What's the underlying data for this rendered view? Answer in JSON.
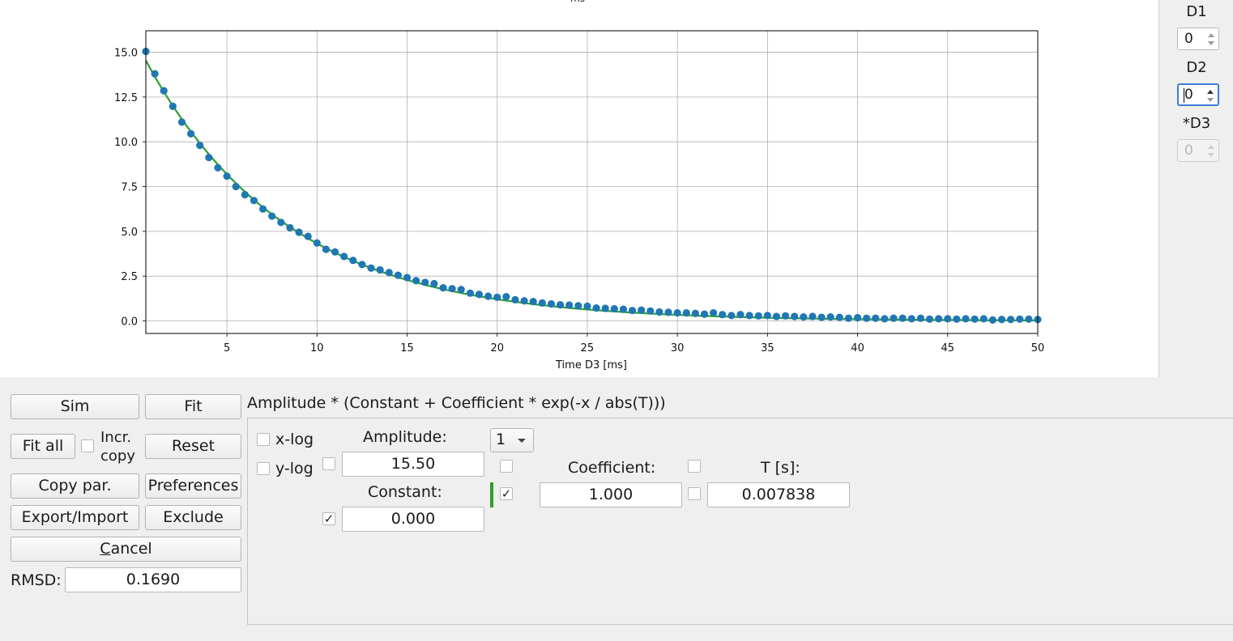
{
  "plot": {
    "title_fragment": "ms",
    "xlabel": "Time D3 [ms]"
  },
  "chart_data": {
    "type": "scatter",
    "title": "",
    "xlabel": "Time D3 [ms]",
    "ylabel": "",
    "xlim": [
      0.5,
      50
    ],
    "ylim": [
      -0.7,
      16.2
    ],
    "x_ticks": [
      5,
      10,
      15,
      20,
      25,
      30,
      35,
      40,
      45,
      50
    ],
    "y_ticks": [
      0.0,
      2.5,
      5.0,
      7.5,
      10.0,
      12.5,
      15.0
    ],
    "y_tick_labels": [
      "0.0",
      "2.5",
      "5.0",
      "7.5",
      "10.0",
      "12.5",
      "15.0"
    ],
    "grid": true,
    "series": [
      {
        "kind": "scatter",
        "color": "#1f77b4",
        "x": [
          0.5,
          1.0,
          1.5,
          2.0,
          2.5,
          3.0,
          3.5,
          4.0,
          4.5,
          5.0,
          5.5,
          6.0,
          6.5,
          7.0,
          7.5,
          8.0,
          8.5,
          9.0,
          9.5,
          10.0,
          10.5,
          11.0,
          11.5,
          12.0,
          12.5,
          13.0,
          13.5,
          14.0,
          14.5,
          15.0,
          15.5,
          16.0,
          16.5,
          17.0,
          17.5,
          18.0,
          18.5,
          19.0,
          19.5,
          20.0,
          20.5,
          21.0,
          21.5,
          22.0,
          22.5,
          23.0,
          23.5,
          24.0,
          24.5,
          25.0,
          25.5,
          26.0,
          26.5,
          27.0,
          27.5,
          28.0,
          28.5,
          29.0,
          29.5,
          30.0,
          30.5,
          31.0,
          31.5,
          32.0,
          32.5,
          33.0,
          33.5,
          34.0,
          34.5,
          35.0,
          35.5,
          36.0,
          36.5,
          37.0,
          37.5,
          38.0,
          38.5,
          39.0,
          39.5,
          40.0,
          40.5,
          41.0,
          41.5,
          42.0,
          42.5,
          43.0,
          43.5,
          44.0,
          44.5,
          45.0,
          45.5,
          46.0,
          46.5,
          47.0,
          47.5,
          48.0,
          48.5,
          49.0,
          49.5,
          50.0
        ],
        "y": [
          15.05,
          13.8,
          12.85,
          11.98,
          11.1,
          10.45,
          9.8,
          9.12,
          8.55,
          8.08,
          7.5,
          7.05,
          6.72,
          6.25,
          5.85,
          5.5,
          5.2,
          4.95,
          4.72,
          4.35,
          4.0,
          3.85,
          3.6,
          3.38,
          3.15,
          2.95,
          2.85,
          2.7,
          2.55,
          2.42,
          2.25,
          2.15,
          2.08,
          1.85,
          1.8,
          1.75,
          1.55,
          1.48,
          1.38,
          1.32,
          1.35,
          1.18,
          1.12,
          1.08,
          1.0,
          0.95,
          0.9,
          0.88,
          0.85,
          0.82,
          0.72,
          0.7,
          0.68,
          0.65,
          0.58,
          0.6,
          0.55,
          0.5,
          0.48,
          0.45,
          0.45,
          0.42,
          0.38,
          0.45,
          0.35,
          0.3,
          0.35,
          0.3,
          0.28,
          0.3,
          0.25,
          0.28,
          0.25,
          0.22,
          0.25,
          0.2,
          0.22,
          0.2,
          0.15,
          0.18,
          0.15,
          0.15,
          0.12,
          0.15,
          0.15,
          0.12,
          0.15,
          0.1,
          0.12,
          0.12,
          0.1,
          0.12,
          0.1,
          0.12,
          0.05,
          0.08,
          0.08,
          0.1,
          0.1,
          0.08
        ]
      },
      {
        "kind": "line",
        "color": "#2ca02c",
        "function": "15.50 * (0.000 + 1.000 * exp(-x / 7.838))"
      }
    ]
  },
  "side": {
    "d1_label": "D1",
    "d1_value": "0",
    "d2_label": "D2",
    "d2_value": "0",
    "d3_label": "*D3",
    "d3_value": "0"
  },
  "buttons": {
    "sim": "Sim",
    "fit": "Fit",
    "fit_all": "Fit all",
    "incr_copy_line1": "Incr.",
    "incr_copy_line2": "copy",
    "reset": "Reset",
    "copy_par": "Copy par.",
    "preferences": "Preferences",
    "export_import": "Export/Import",
    "exclude": "Exclude",
    "cancel_underline": "C",
    "cancel_rest": "ancel"
  },
  "rmsd": {
    "label": "RMSD:",
    "value": "0.1690"
  },
  "formula": "Amplitude * (Constant + Coefficient * exp(-x / abs(T)))",
  "fit_params": {
    "xlog_label": "x-log",
    "ylog_label": "y-log",
    "combo_value": "1",
    "amplitude_label": "Amplitude:",
    "amplitude_value": "15.50",
    "constant_label": "Constant:",
    "constant_value": "0.000",
    "coefficient_label": "Coefficient:",
    "coefficient_value": "1.000",
    "t_label": "T [s]:",
    "t_value": "0.007838",
    "check_mark": "✓",
    "accent_color": "#2ca02c"
  }
}
